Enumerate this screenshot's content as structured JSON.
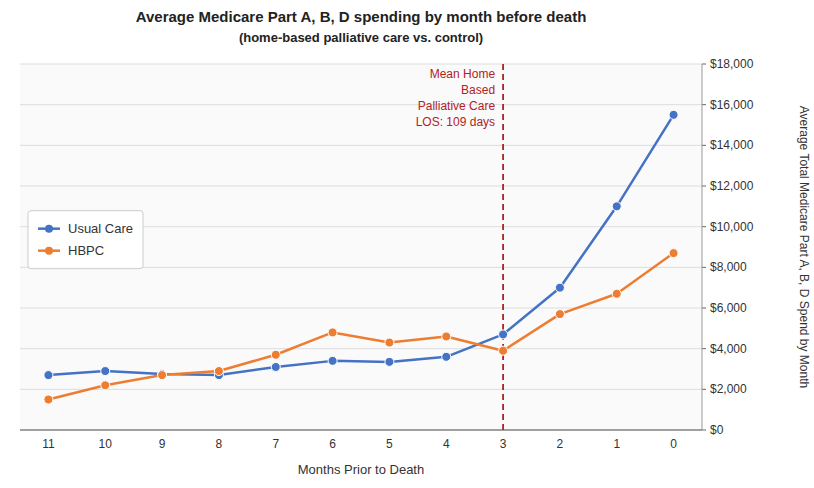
{
  "chart_data": {
    "type": "line",
    "title": "Average Medicare Part A, B, D spending by month before death",
    "subtitle": "(home-based palliative care vs. control)",
    "x_label": "Months Prior to Death",
    "y_label": "Average Total Medicare Part A, B, D Spend by Month",
    "categories": [
      11,
      10,
      9,
      8,
      7,
      6,
      5,
      4,
      3,
      2,
      1,
      0
    ],
    "series": [
      {
        "name": "Usual Care",
        "color": "#4472C4",
        "marker": "circle",
        "values": [
          2700,
          2900,
          2750,
          2700,
          3100,
          3400,
          3350,
          3600,
          4700,
          7000,
          11000,
          15500
        ]
      },
      {
        "name": "HBPC",
        "color": "#ED7D31",
        "marker": "circle",
        "values": [
          1500,
          2200,
          2700,
          2900,
          3700,
          4800,
          4300,
          4600,
          3900,
          5700,
          6700,
          8700
        ]
      }
    ],
    "annotations": [
      {
        "text": "Mean Home\nBased\nPalliative Care\nLOS: 109 days",
        "x": 3,
        "color": "#B22222",
        "line_style": "dashed"
      }
    ],
    "ylim": [
      0,
      18000
    ],
    "yticks": [
      {
        "value": 0,
        "label": "$0"
      },
      {
        "value": 2000,
        "label": "$2,000"
      },
      {
        "value": 4000,
        "label": "$4,000"
      },
      {
        "value": 6000,
        "label": "$6,000"
      },
      {
        "value": 8000,
        "label": "$8,000"
      },
      {
        "value": 10000,
        "label": "$10,000"
      },
      {
        "value": 12000,
        "label": "$12,000"
      },
      {
        "value": 14000,
        "label": "$14,000"
      },
      {
        "value": 16000,
        "label": "$16,000"
      },
      {
        "value": 18000,
        "label": "$18,000"
      }
    ],
    "grid": true,
    "legend": "left"
  }
}
